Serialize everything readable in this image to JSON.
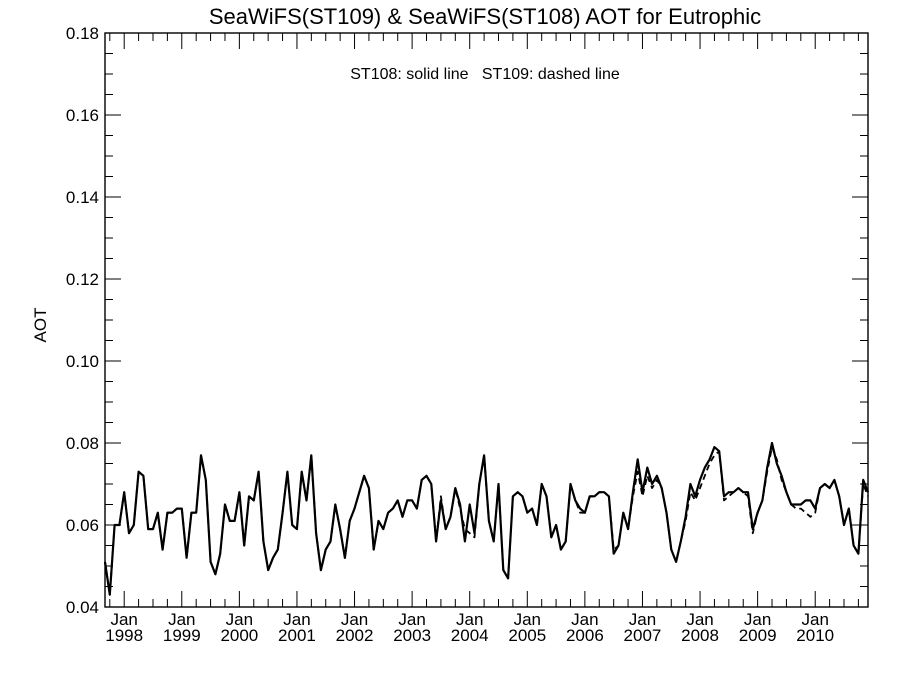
{
  "chart_data": {
    "type": "line",
    "title": "SeaWiFS(ST109) & SeaWiFS(ST108)  AOT for Eutrophic",
    "annotation": "ST108: solid line   ST109: dashed line",
    "xlabel": "",
    "ylabel": "AOT",
    "xlim": [
      "1997-09",
      "2010-12"
    ],
    "ylim": [
      0.04,
      0.18
    ],
    "yticks": [
      "0.04",
      "0.06",
      "0.08",
      "0.10",
      "0.12",
      "0.14",
      "0.16",
      "0.18"
    ],
    "xticks": [
      {
        "top": "Jan",
        "bottom": "1998",
        "date": "1998-01"
      },
      {
        "top": "Jan",
        "bottom": "1999",
        "date": "1999-01"
      },
      {
        "top": "Jan",
        "bottom": "2000",
        "date": "2000-01"
      },
      {
        "top": "Jan",
        "bottom": "2001",
        "date": "2001-01"
      },
      {
        "top": "Jan",
        "bottom": "2002",
        "date": "2002-01"
      },
      {
        "top": "Jan",
        "bottom": "2003",
        "date": "2003-01"
      },
      {
        "top": "Jan",
        "bottom": "2004",
        "date": "2004-01"
      },
      {
        "top": "Jan",
        "bottom": "2005",
        "date": "2005-01"
      },
      {
        "top": "Jan",
        "bottom": "2006",
        "date": "2006-01"
      },
      {
        "top": "Jan",
        "bottom": "2007",
        "date": "2007-01"
      },
      {
        "top": "Jan",
        "bottom": "2008",
        "date": "2008-01"
      },
      {
        "top": "Jan",
        "bottom": "2009",
        "date": "2009-01"
      },
      {
        "top": "Jan",
        "bottom": "2010",
        "date": "2010-01"
      }
    ],
    "grid": false,
    "series": [
      {
        "label": "ST108",
        "style": "solid",
        "x": [
          "1997-09",
          "1997-10",
          "1997-11",
          "1997-12",
          "1998-01",
          "1998-02",
          "1998-03",
          "1998-04",
          "1998-05",
          "1998-06",
          "1998-07",
          "1998-08",
          "1998-09",
          "1998-10",
          "1998-11",
          "1998-12",
          "1999-01",
          "1999-02",
          "1999-03",
          "1999-04",
          "1999-05",
          "1999-06",
          "1999-07",
          "1999-08",
          "1999-09",
          "1999-10",
          "1999-11",
          "1999-12",
          "2000-01",
          "2000-02",
          "2000-03",
          "2000-04",
          "2000-05",
          "2000-06",
          "2000-07",
          "2000-08",
          "2000-09",
          "2000-10",
          "2000-11",
          "2000-12",
          "2001-01",
          "2001-02",
          "2001-03",
          "2001-04",
          "2001-05",
          "2001-06",
          "2001-07",
          "2001-08",
          "2001-09",
          "2001-10",
          "2001-11",
          "2001-12",
          "2002-01",
          "2002-02",
          "2002-03",
          "2002-04",
          "2002-05",
          "2002-06",
          "2002-07",
          "2002-08",
          "2002-09",
          "2002-10",
          "2002-11",
          "2002-12",
          "2003-01",
          "2003-02",
          "2003-03",
          "2003-04",
          "2003-05",
          "2003-06",
          "2003-07",
          "2003-08",
          "2003-09",
          "2003-10",
          "2003-11",
          "2003-12",
          "2004-01",
          "2004-02",
          "2004-03",
          "2004-04",
          "2004-05",
          "2004-06",
          "2004-07",
          "2004-08",
          "2004-09",
          "2004-10",
          "2004-11",
          "2004-12",
          "2005-01",
          "2005-02",
          "2005-03",
          "2005-04",
          "2005-05",
          "2005-06",
          "2005-07",
          "2005-08",
          "2005-09",
          "2005-10",
          "2005-11",
          "2005-12",
          "2006-01",
          "2006-02",
          "2006-03",
          "2006-04",
          "2006-05",
          "2006-06",
          "2006-07",
          "2006-08",
          "2006-09",
          "2006-10",
          "2006-11",
          "2006-12",
          "2007-01",
          "2007-02",
          "2007-03",
          "2007-04",
          "2007-05",
          "2007-06",
          "2007-07",
          "2007-08",
          "2007-09",
          "2007-10",
          "2007-11",
          "2007-12",
          "2008-01",
          "2008-02",
          "2008-03",
          "2008-04",
          "2008-05",
          "2008-06",
          "2008-07",
          "2008-08",
          "2008-09",
          "2008-10",
          "2008-11",
          "2008-12",
          "2009-01",
          "2009-02",
          "2009-03",
          "2009-04",
          "2009-05",
          "2009-06",
          "2009-07",
          "2009-08",
          "2009-09",
          "2009-10",
          "2009-11",
          "2009-12",
          "2010-01",
          "2010-02",
          "2010-03",
          "2010-04",
          "2010-05",
          "2010-06",
          "2010-07",
          "2010-08",
          "2010-09",
          "2010-10",
          "2010-11",
          "2010-12"
        ],
        "values": [
          0.051,
          0.043,
          0.06,
          0.06,
          0.068,
          0.058,
          0.06,
          0.073,
          0.072,
          0.059,
          0.059,
          0.063,
          0.054,
          0.063,
          0.063,
          0.064,
          0.064,
          0.052,
          0.063,
          0.063,
          0.077,
          0.071,
          0.051,
          0.048,
          0.053,
          0.065,
          0.061,
          0.061,
          0.068,
          0.055,
          0.067,
          0.066,
          0.073,
          0.056,
          0.049,
          0.052,
          0.054,
          0.063,
          0.073,
          0.06,
          0.059,
          0.073,
          0.066,
          0.077,
          0.058,
          0.049,
          0.054,
          0.056,
          0.065,
          0.059,
          0.052,
          0.061,
          0.064,
          0.068,
          0.072,
          0.069,
          0.054,
          0.061,
          0.059,
          0.063,
          0.064,
          0.066,
          0.062,
          0.066,
          0.066,
          0.064,
          0.071,
          0.072,
          0.07,
          0.056,
          0.066,
          0.059,
          0.062,
          0.069,
          0.065,
          0.056,
          0.065,
          0.058,
          0.07,
          0.077,
          0.061,
          0.056,
          0.07,
          0.049,
          0.047,
          0.067,
          0.068,
          0.067,
          0.063,
          0.064,
          0.06,
          0.07,
          0.067,
          0.057,
          0.06,
          0.054,
          0.056,
          0.07,
          0.066,
          0.064,
          0.063,
          0.067,
          0.067,
          0.068,
          0.068,
          0.067,
          0.053,
          0.055,
          0.063,
          0.059,
          0.068,
          0.076,
          0.068,
          0.074,
          0.07,
          0.072,
          0.069,
          0.063,
          0.054,
          0.051,
          0.056,
          0.062,
          0.07,
          0.067,
          0.071,
          0.074,
          0.076,
          0.079,
          0.078,
          0.067,
          0.068,
          0.068,
          0.069,
          0.068,
          0.068,
          0.059,
          0.063,
          0.066,
          0.074,
          0.08,
          0.075,
          0.072,
          0.068,
          0.065,
          0.065,
          0.065,
          0.066,
          0.066,
          0.064,
          0.069,
          0.07,
          0.069,
          0.071,
          0.067,
          0.06,
          0.064,
          0.055,
          0.053,
          0.071,
          0.068
        ],
        "color": "#000000"
      },
      {
        "label": "ST109",
        "style": "dashed",
        "x": [
          "1997-09",
          "1997-10",
          "1997-11",
          "1997-12",
          "1998-01",
          "1998-02",
          "1998-03",
          "1998-04",
          "1998-05",
          "1998-06",
          "1998-07",
          "1998-08",
          "1998-09",
          "1998-10",
          "1998-11",
          "1998-12",
          "1999-01",
          "1999-02",
          "1999-03",
          "1999-04",
          "1999-05",
          "1999-06",
          "1999-07",
          "1999-08",
          "1999-09",
          "1999-10",
          "1999-11",
          "1999-12",
          "2000-01",
          "2000-02",
          "2000-03",
          "2000-04",
          "2000-05",
          "2000-06",
          "2000-07",
          "2000-08",
          "2000-09",
          "2000-10",
          "2000-11",
          "2000-12",
          "2001-01",
          "2001-02",
          "2001-03",
          "2001-04",
          "2001-05",
          "2001-06",
          "2001-07",
          "2001-08",
          "2001-09",
          "2001-10",
          "2001-11",
          "2001-12",
          "2002-01",
          "2002-02",
          "2002-03",
          "2002-04",
          "2002-05",
          "2002-06",
          "2002-07",
          "2002-08",
          "2002-09",
          "2002-10",
          "2002-11",
          "2002-12",
          "2003-01",
          "2003-02",
          "2003-03",
          "2003-04",
          "2003-05",
          "2003-06",
          "2003-07",
          "2003-08",
          "2003-09",
          "2003-10",
          "2003-11",
          "2003-12",
          "2004-01",
          "2004-02",
          "2004-03",
          "2004-04",
          "2004-05",
          "2004-06",
          "2004-07",
          "2004-08",
          "2004-09",
          "2004-10",
          "2004-11",
          "2004-12",
          "2005-01",
          "2005-02",
          "2005-03",
          "2005-04",
          "2005-05",
          "2005-06",
          "2005-07",
          "2005-08",
          "2005-09",
          "2005-10",
          "2005-11",
          "2005-12",
          "2006-01",
          "2006-02",
          "2006-03",
          "2006-04",
          "2006-05",
          "2006-06",
          "2006-07",
          "2006-08",
          "2006-09",
          "2006-10",
          "2006-11",
          "2006-12",
          "2007-01",
          "2007-02",
          "2007-03",
          "2007-04",
          "2007-05",
          "2007-06",
          "2007-07",
          "2007-08",
          "2007-09",
          "2007-10",
          "2007-11",
          "2007-12",
          "2008-01",
          "2008-02",
          "2008-03",
          "2008-04",
          "2008-05",
          "2008-06",
          "2008-07",
          "2008-08",
          "2008-09",
          "2008-10",
          "2008-11",
          "2008-12",
          "2009-01",
          "2009-02",
          "2009-03",
          "2009-04",
          "2009-05",
          "2009-06",
          "2009-07",
          "2009-08",
          "2009-09",
          "2009-10",
          "2009-11",
          "2009-12",
          "2010-01",
          "2010-02",
          "2010-03",
          "2010-04",
          "2010-05",
          "2010-06",
          "2010-07",
          "2010-08",
          "2010-09",
          "2010-10",
          "2010-11",
          "2010-12"
        ],
        "values": [
          0.051,
          0.043,
          0.06,
          0.06,
          0.068,
          0.058,
          0.06,
          0.073,
          0.072,
          0.059,
          0.059,
          0.063,
          0.054,
          0.063,
          0.063,
          0.064,
          0.064,
          0.052,
          0.063,
          0.063,
          0.077,
          0.071,
          0.051,
          0.048,
          0.053,
          0.065,
          0.061,
          0.061,
          0.068,
          0.055,
          0.067,
          0.066,
          0.073,
          0.056,
          0.049,
          0.052,
          0.054,
          0.063,
          0.073,
          0.06,
          0.059,
          0.073,
          0.066,
          0.077,
          0.058,
          0.049,
          0.054,
          0.056,
          0.065,
          0.059,
          0.052,
          0.061,
          0.064,
          0.068,
          0.072,
          0.069,
          0.054,
          0.061,
          0.059,
          0.063,
          0.064,
          0.066,
          0.062,
          0.066,
          0.066,
          0.064,
          0.071,
          0.072,
          0.07,
          0.056,
          0.067,
          0.059,
          0.062,
          0.069,
          0.064,
          0.059,
          0.058,
          0.057,
          0.07,
          0.077,
          0.061,
          0.056,
          0.07,
          0.049,
          0.047,
          0.067,
          0.068,
          0.067,
          0.063,
          0.064,
          0.06,
          0.07,
          0.067,
          0.057,
          0.06,
          0.054,
          0.056,
          0.07,
          0.066,
          0.063,
          0.063,
          0.067,
          0.067,
          0.068,
          0.068,
          0.067,
          0.054,
          0.055,
          0.063,
          0.059,
          0.067,
          0.073,
          0.067,
          0.072,
          0.069,
          0.071,
          0.069,
          0.063,
          0.054,
          0.051,
          0.056,
          0.061,
          0.068,
          0.066,
          0.069,
          0.072,
          0.075,
          0.077,
          0.078,
          0.066,
          0.067,
          0.068,
          0.069,
          0.068,
          0.067,
          0.058,
          0.063,
          0.066,
          0.073,
          0.079,
          0.076,
          0.071,
          0.068,
          0.065,
          0.064,
          0.064,
          0.063,
          0.062,
          0.063,
          0.069,
          0.07,
          0.069,
          0.071,
          0.067,
          0.06,
          0.064,
          0.055,
          0.053,
          0.07,
          0.067
        ],
        "color": "#000000"
      }
    ]
  }
}
